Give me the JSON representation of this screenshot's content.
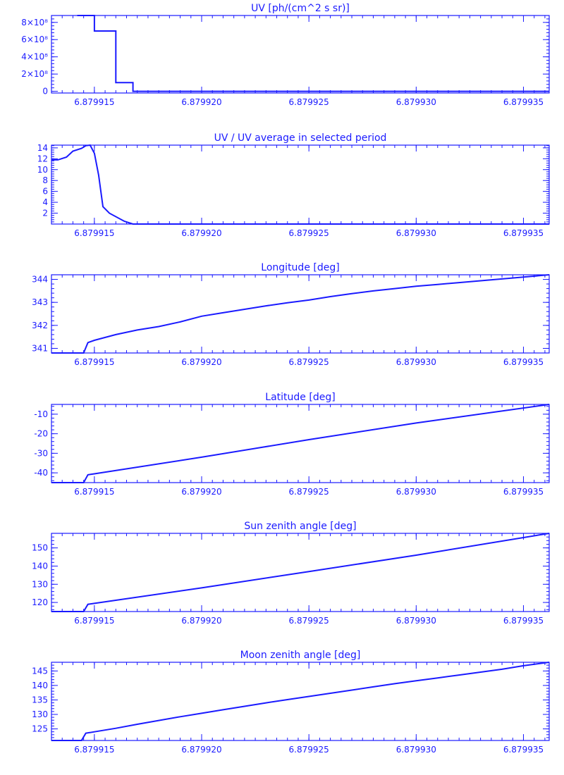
{
  "chart_data": [
    {
      "type": "line",
      "title": "UV [ph/(cm^2 s sr)]",
      "x_ticks": [
        "6.879915",
        "6.879920",
        "6.879925",
        "6.879930",
        "6.879935"
      ],
      "x_tick_values": [
        6.879915,
        6.87992,
        6.879925,
        6.87993,
        6.879935
      ],
      "xlim": [
        6.879913,
        6.8799362
      ],
      "y_ticks": [
        "0",
        "2×10⁸",
        "4×10⁸",
        "6×10⁸",
        "8×10⁸"
      ],
      "y_tick_values": [
        0,
        200000000,
        400000000,
        600000000,
        800000000
      ],
      "ylim": [
        -20000000,
        880000000
      ],
      "x": [
        6.8799142,
        6.879915,
        6.879915,
        6.879916,
        6.879916,
        6.8799168,
        6.8799168,
        6.8799362
      ],
      "y": [
        880000000,
        880000000,
        700000000,
        700000000,
        100000000,
        100000000,
        0,
        0
      ]
    },
    {
      "type": "line",
      "title": "UV / UV average in selected period",
      "x_ticks": [
        "6.879915",
        "6.879920",
        "6.879925",
        "6.879930",
        "6.879935"
      ],
      "x_tick_values": [
        6.879915,
        6.87992,
        6.879925,
        6.87993,
        6.879935
      ],
      "xlim": [
        6.879913,
        6.8799362
      ],
      "y_ticks": [
        "2",
        "4",
        "6",
        "8",
        "10",
        "12",
        "14"
      ],
      "y_tick_values": [
        2,
        4,
        6,
        8,
        10,
        12,
        14
      ],
      "ylim": [
        0,
        14.5
      ],
      "x": [
        6.879913,
        6.8799133,
        6.8799137,
        6.879914,
        6.8799144,
        6.8799146,
        6.8799148,
        6.879915,
        6.8799152,
        6.8799154,
        6.8799157,
        6.8799164,
        6.8799168,
        6.8799362
      ],
      "y": [
        11.8,
        11.8,
        12.3,
        13.4,
        13.9,
        14.4,
        14.5,
        13.0,
        9.0,
        3.2,
        2.0,
        0.5,
        0,
        0
      ]
    },
    {
      "type": "line",
      "title": "Longitude [deg]",
      "x_ticks": [
        "6.879915",
        "6.879920",
        "6.879925",
        "6.879930",
        "6.879935"
      ],
      "x_tick_values": [
        6.879915,
        6.87992,
        6.879925,
        6.87993,
        6.879935
      ],
      "xlim": [
        6.879913,
        6.8799362
      ],
      "y_ticks": [
        "341",
        "342",
        "343",
        "344"
      ],
      "y_tick_values": [
        341,
        342,
        343,
        344
      ],
      "ylim": [
        340.8,
        344.2
      ],
      "x": [
        6.879913,
        6.8799145,
        6.8799147,
        6.879915,
        6.879916,
        6.879917,
        6.879918,
        6.879919,
        6.87992,
        6.879921,
        6.879922,
        6.879923,
        6.879924,
        6.879925,
        6.879926,
        6.879927,
        6.879928,
        6.879929,
        6.87993,
        6.879931,
        6.879932,
        6.879933,
        6.879934,
        6.879935,
        6.8799362
      ],
      "y": [
        340.8,
        340.8,
        341.25,
        341.35,
        341.6,
        341.8,
        341.95,
        342.15,
        342.4,
        342.55,
        342.7,
        342.85,
        342.98,
        343.1,
        343.25,
        343.38,
        343.5,
        343.6,
        343.7,
        343.78,
        343.86,
        343.94,
        344.02,
        344.1,
        344.2
      ]
    },
    {
      "type": "line",
      "title": "Latitude [deg]",
      "x_ticks": [
        "6.879915",
        "6.879920",
        "6.879925",
        "6.879930",
        "6.879935"
      ],
      "x_tick_values": [
        6.879915,
        6.87992,
        6.879925,
        6.87993,
        6.879935
      ],
      "xlim": [
        6.879913,
        6.8799362
      ],
      "y_ticks": [
        "-40",
        "-30",
        "-20",
        "-10"
      ],
      "y_tick_values": [
        -40,
        -30,
        -20,
        -10
      ],
      "ylim": [
        -45,
        -5
      ],
      "x": [
        6.879913,
        6.8799145,
        6.8799147,
        6.879915,
        6.87992,
        6.879925,
        6.87993,
        6.8799362
      ],
      "y": [
        -45,
        -45,
        -41,
        -40.5,
        -32,
        -23,
        -14.5,
        -5
      ]
    },
    {
      "type": "line",
      "title": "Sun zenith angle [deg]",
      "x_ticks": [
        "6.879915",
        "6.879920",
        "6.879925",
        "6.879930",
        "6.879935"
      ],
      "x_tick_values": [
        6.879915,
        6.87992,
        6.879925,
        6.87993,
        6.879935
      ],
      "xlim": [
        6.879913,
        6.8799362
      ],
      "y_ticks": [
        "120",
        "130",
        "140",
        "150"
      ],
      "y_tick_values": [
        120,
        130,
        140,
        150
      ],
      "ylim": [
        115,
        158
      ],
      "x": [
        6.879913,
        6.8799145,
        6.8799147,
        6.879915,
        6.87992,
        6.879925,
        6.87993,
        6.8799362
      ],
      "y": [
        115,
        115,
        119,
        119.5,
        128,
        137,
        146,
        158
      ]
    },
    {
      "type": "line",
      "title": "Moon zenith angle [deg]",
      "x_ticks": [
        "6.879915",
        "6.879920",
        "6.879925",
        "6.879930",
        "6.879935"
      ],
      "x_tick_values": [
        6.879915,
        6.87992,
        6.879925,
        6.87993,
        6.879935
      ],
      "xlim": [
        6.879913,
        6.8799362
      ],
      "y_ticks": [
        "125",
        "130",
        "135",
        "140",
        "145"
      ],
      "y_tick_values": [
        125,
        130,
        135,
        140,
        145
      ],
      "ylim": [
        121,
        148
      ],
      "x": [
        6.879913,
        6.8799144,
        6.8799146,
        6.879915,
        6.879916,
        6.879917,
        6.879918,
        6.879919,
        6.87992,
        6.879921,
        6.879922,
        6.879923,
        6.879924,
        6.879925,
        6.879926,
        6.879927,
        6.879928,
        6.879929,
        6.87993,
        6.879931,
        6.879932,
        6.879933,
        6.879934,
        6.879935,
        6.8799362
      ],
      "y": [
        121,
        121,
        123.5,
        124,
        125.2,
        126.6,
        127.9,
        129.2,
        130.4,
        131.6,
        132.8,
        134,
        135.1,
        136.2,
        137.3,
        138.4,
        139.5,
        140.6,
        141.6,
        142.6,
        143.6,
        144.6,
        145.6,
        146.8,
        148
      ]
    }
  ]
}
